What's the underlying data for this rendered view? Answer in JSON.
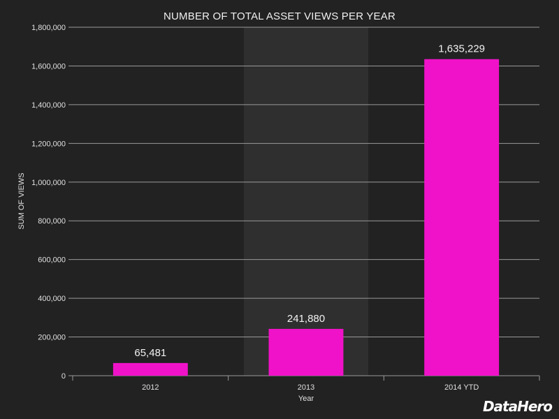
{
  "chart_data": {
    "type": "bar",
    "title": "NUMBER OF TOTAL ASSET VIEWS PER YEAR",
    "xlabel": "Year",
    "ylabel": "SUM OF VIEWS",
    "categories": [
      "2012",
      "2013",
      "2014 YTD"
    ],
    "values": [
      65481,
      241880,
      1635229
    ],
    "value_labels": [
      "65,481",
      "241,880",
      "1,635,229"
    ],
    "ylim": [
      0,
      1800000
    ],
    "yticks": [
      0,
      200000,
      400000,
      600000,
      800000,
      1000000,
      1200000,
      1400000,
      1600000,
      1800000
    ],
    "ytick_labels": [
      "0",
      "200,000",
      "400,000",
      "600,000",
      "800,000",
      "1,000,000",
      "1,200,000",
      "1,400,000",
      "1,600,000",
      "1,800,000"
    ],
    "highlighted_category": "2013",
    "grid": true,
    "bar_color": "#f012c8",
    "background_color": "#222222",
    "highlight_color": "#2f2f2f",
    "grid_color": "#9a9a9a"
  },
  "brand": {
    "logo_text": "DataHero"
  }
}
